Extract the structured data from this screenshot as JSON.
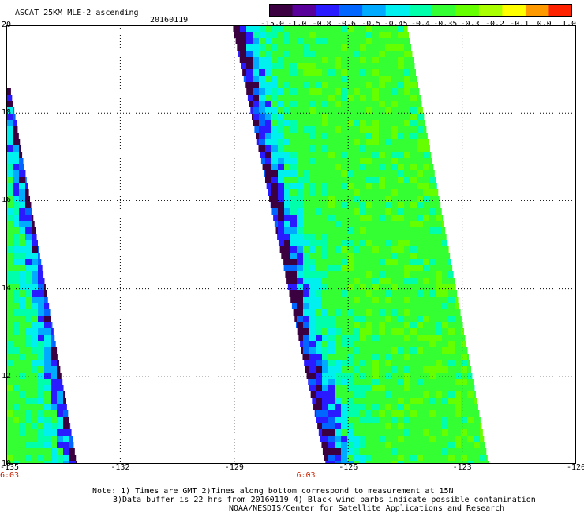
{
  "header": {
    "title": "ASCAT 25KM MLE-2 ascending",
    "date": "20160119"
  },
  "colorbar": {
    "labels": [
      "-15.0",
      "-1.0",
      "-0.8",
      "-0.6",
      "-0.5",
      "-0.45",
      "-0.4",
      "-0.35",
      "-0.3",
      "-0.2",
      "-0.1",
      "0.0",
      "1.0"
    ],
    "colors": [
      "#3a0040",
      "#5a009a",
      "#2a1aff",
      "#0066ff",
      "#00aaff",
      "#00f0f0",
      "#00ffaa",
      "#33ff33",
      "#66ff00",
      "#aaff00",
      "#ffff00",
      "#ff9900",
      "#ff2200"
    ]
  },
  "map": {
    "lon_ticks": [
      "-135",
      "-132",
      "-129",
      "-126",
      "-123",
      "-120"
    ],
    "lat_ticks": [
      "20",
      "18",
      "16",
      "14",
      "12",
      "10"
    ],
    "pass_times": [
      {
        "label": "6:03",
        "lon": -135
      },
      {
        "label": "6:03",
        "lon": -127.2
      }
    ],
    "lon_range": [
      -135,
      -120
    ],
    "lat_range": [
      10,
      20
    ]
  },
  "notes": {
    "line1": "Note: 1) Times are GMT 2)Times along bottom correspond to measurement at 15N",
    "line2": "3)Data buffer is 22 hrs from 20160119 4) Black wind barbs indicate possible contamination",
    "line3": "NOAA/NESDIS/Center for Satellite Applications and Research"
  }
}
